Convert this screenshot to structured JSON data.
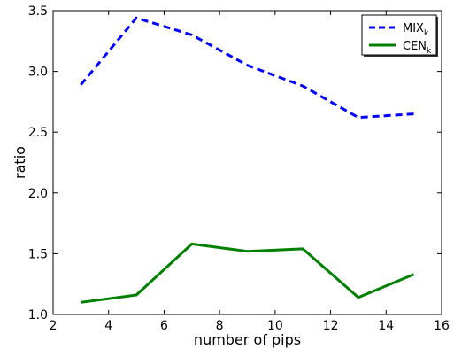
{
  "chart_data": {
    "type": "line",
    "title": "",
    "xlabel": "number of pips",
    "ylabel": "ratio",
    "xlim": [
      2,
      16
    ],
    "ylim": [
      1.0,
      3.5
    ],
    "xticks": [
      2,
      4,
      6,
      8,
      10,
      12,
      14,
      16
    ],
    "yticks": [
      1.0,
      1.5,
      2.0,
      2.5,
      3.0,
      3.5
    ],
    "x": [
      3,
      5,
      7,
      9,
      11,
      13,
      15
    ],
    "grid": false,
    "legend_position": "top-right",
    "series": [
      {
        "name": "MIX",
        "name_subscript": "k",
        "style": "dashed",
        "color": "#0000ff",
        "values": [
          2.89,
          3.44,
          3.3,
          3.05,
          2.88,
          2.62,
          2.65
        ]
      },
      {
        "name": "CEN",
        "name_subscript": "k",
        "style": "solid",
        "color": "#008000",
        "values": [
          1.1,
          1.16,
          1.58,
          1.52,
          1.54,
          1.14,
          1.33
        ]
      }
    ]
  }
}
